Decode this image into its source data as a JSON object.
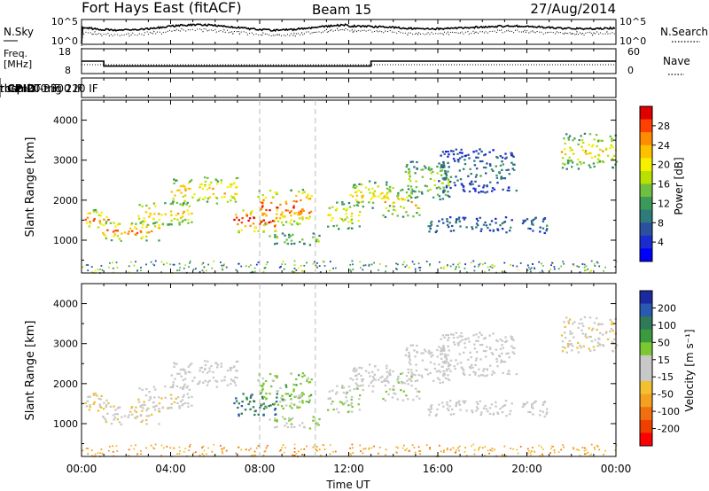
{
  "header": {
    "station": "Fort Hays East (fitACF)",
    "beam": "Beam 15",
    "date": "27/Aug/2014"
  },
  "nsky_panel": {
    "left_label": "N.Sky",
    "right_label": "N.Search",
    "left_ticks": [
      "10^5",
      "10^0"
    ],
    "right_ticks": [
      "10^5",
      "10^0"
    ]
  },
  "freq_panel": {
    "left_label_1": "Freq.",
    "left_label_2": "[MHz]",
    "left_ticks": [
      "18",
      "8"
    ],
    "right_label": "Nave",
    "right_ticks": [
      "60",
      "0"
    ]
  },
  "cpid_panel": {
    "label": "CPID",
    "segments": [
      {
        "start_ut": 0.1,
        "text": "themis -3300 IF"
      },
      {
        "start_ut": 8.0,
        "text": "rbsp 200 IF"
      },
      {
        "start_ut": 10.5,
        "text": "rbsp CT-trig 220 IF"
      }
    ]
  },
  "power_panel": {
    "ylabel": "Slant Range [km]",
    "cbar_label": "Power [dB]",
    "cbar_ticks": [
      "28",
      "24",
      "20",
      "16",
      "12",
      "8",
      "4"
    ],
    "cbar_colors": [
      "#e00000",
      "#ff4000",
      "#ff8c00",
      "#ffc000",
      "#f5f000",
      "#b8e000",
      "#70c040",
      "#3c9a58",
      "#2f7a7a",
      "#2b50a0",
      "#1a2bd0",
      "#0000ff"
    ]
  },
  "velocity_panel": {
    "ylabel": "Slant Range [km]",
    "cbar_label": "Velocity [m s⁻¹]",
    "cbar_ticks": [
      "200",
      "100",
      "50",
      "15",
      "-15",
      "-50",
      "-100",
      "-200"
    ],
    "cbar_colors": [
      "#1c2aa0",
      "#2a5ab0",
      "#2f7a58",
      "#3a9a40",
      "#7cc832",
      "#c8c8c8",
      "#c8c8c8",
      "#f2c030",
      "#f5a020",
      "#f07010",
      "#f04000",
      "#ff0000"
    ]
  },
  "range_ticks": [
    "1000",
    "2000",
    "3000",
    "4000"
  ],
  "time_ticks": [
    "00:00",
    "04:00",
    "08:00",
    "12:00",
    "16:00",
    "20:00",
    "00:00"
  ],
  "xlabel": "Time UT",
  "chart_data": {
    "type": "heatmap",
    "x_unit": "hours UT",
    "xlim": [
      0,
      24
    ],
    "ylim_km": [
      180,
      4500
    ],
    "power_range_db": [
      0,
      30
    ],
    "velocity_range_ms": [
      -250,
      250
    ],
    "frequency_mhz": [
      {
        "start": 0.0,
        "end": 1.0,
        "value": 13
      },
      {
        "start": 1.0,
        "end": 13.0,
        "value": 11
      },
      {
        "start": 13.0,
        "end": 24.0,
        "value": 13
      }
    ],
    "echo_regions": [
      {
        "t0": 0.0,
        "t1": 1.2,
        "r0": 1300,
        "r1": 1800,
        "power": 22,
        "vel": -40
      },
      {
        "t0": 0.8,
        "t1": 3.5,
        "r0": 1000,
        "r1": 1500,
        "power": 22,
        "vel": -30
      },
      {
        "t0": 2.5,
        "t1": 5.0,
        "r0": 1400,
        "r1": 2000,
        "power": 20,
        "vel": -20
      },
      {
        "t0": 4.0,
        "t1": 7.0,
        "r0": 1900,
        "r1": 2600,
        "power": 20,
        "vel": 0
      },
      {
        "t0": 6.8,
        "t1": 8.8,
        "r0": 1200,
        "r1": 1800,
        "power": 26,
        "vel": 150
      },
      {
        "t0": 7.8,
        "t1": 10.3,
        "r0": 1400,
        "r1": 2300,
        "power": 24,
        "vel": 60
      },
      {
        "t0": 8.3,
        "t1": 10.8,
        "r0": 900,
        "r1": 1200,
        "power": 14,
        "vel": 40
      },
      {
        "t0": 11.0,
        "t1": 12.5,
        "r0": 1300,
        "r1": 2000,
        "power": 18,
        "vel": 30
      },
      {
        "t0": 12.0,
        "t1": 14.0,
        "r0": 1800,
        "r1": 2500,
        "power": 18,
        "vel": 0
      },
      {
        "t0": 13.5,
        "t1": 15.2,
        "r0": 1600,
        "r1": 2300,
        "power": 20,
        "vel": 20
      },
      {
        "t0": 14.5,
        "t1": 16.5,
        "r0": 2000,
        "r1": 3000,
        "power": 14,
        "vel": 0
      },
      {
        "t0": 15.5,
        "t1": 21.0,
        "r0": 1200,
        "r1": 1600,
        "power": 8,
        "vel": 0
      },
      {
        "t0": 16.0,
        "t1": 19.5,
        "r0": 2200,
        "r1": 3300,
        "power": 8,
        "vel": -10
      },
      {
        "t0": 21.5,
        "t1": 24.0,
        "r0": 2800,
        "r1": 3700,
        "power": 18,
        "vel": -30
      }
    ]
  }
}
